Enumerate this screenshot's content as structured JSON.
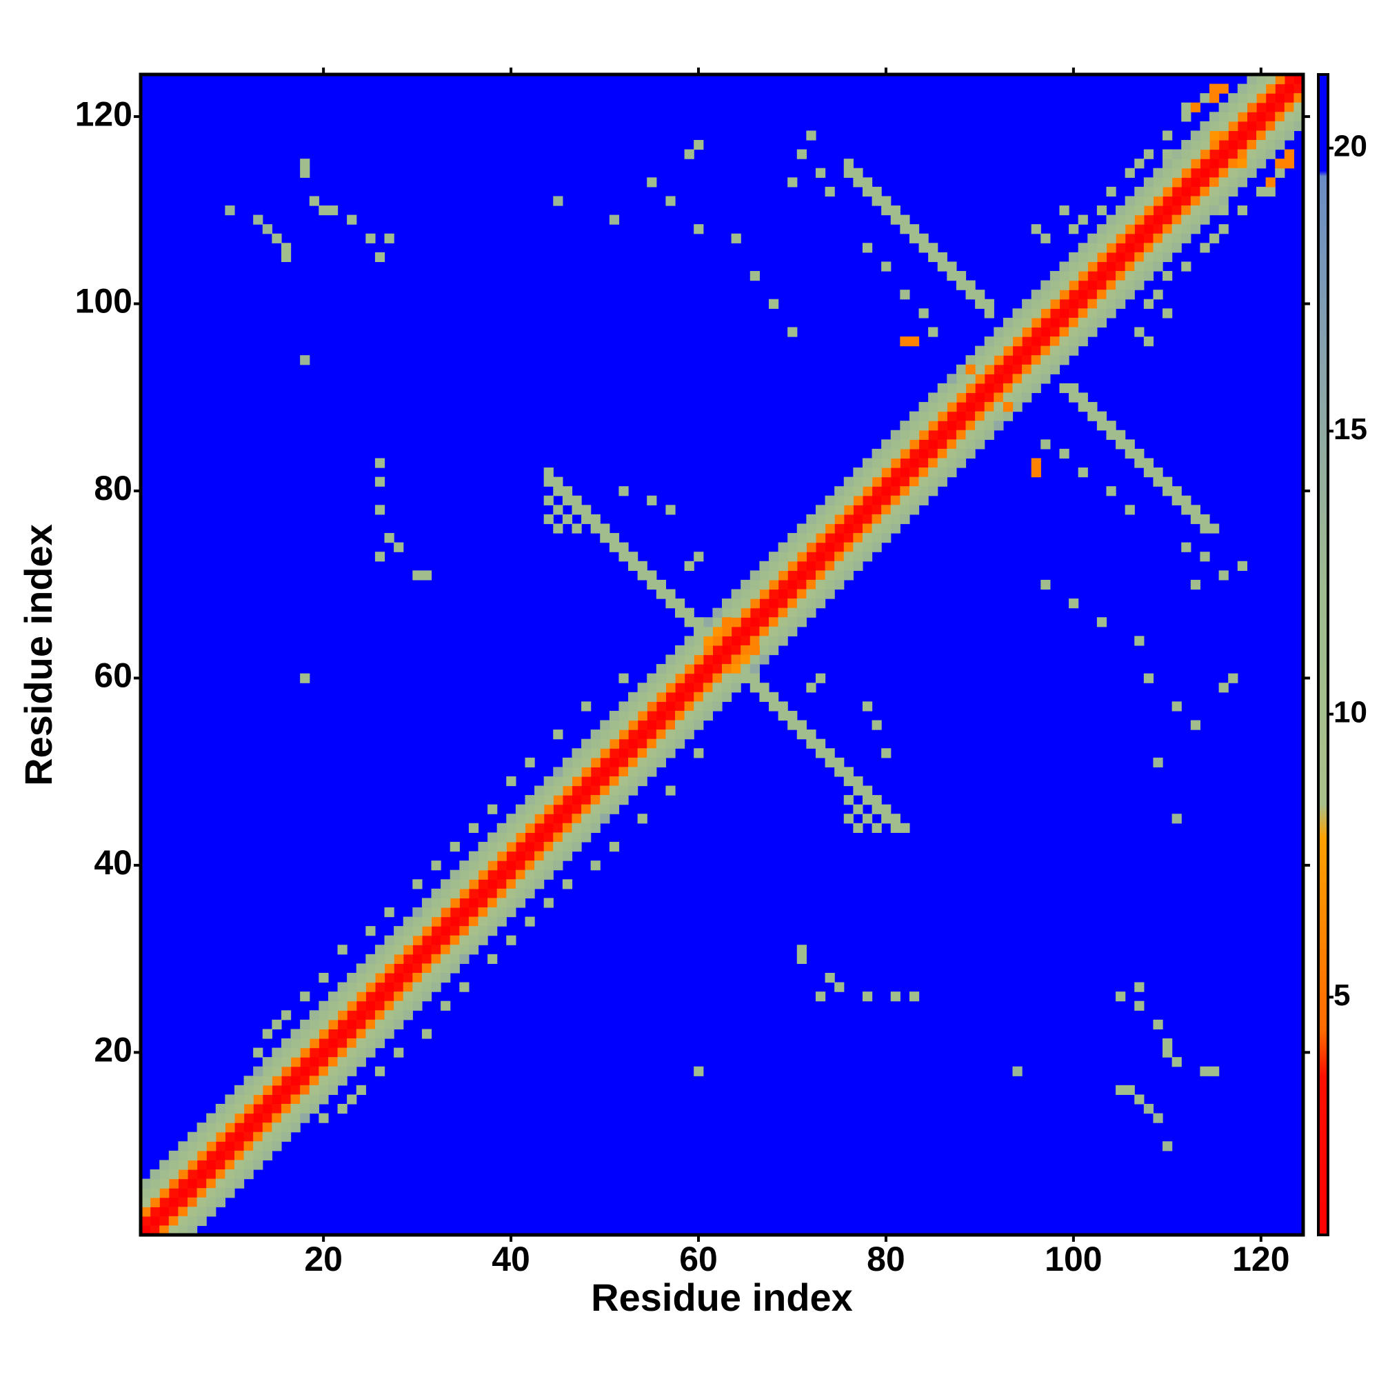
{
  "chart_data": {
    "type": "heatmap",
    "xlabel": "Residue index",
    "ylabel": "Residue index",
    "xlim": [
      0.5,
      124.5
    ],
    "ylim": [
      0.5,
      124.5
    ],
    "xticks": [
      20,
      40,
      60,
      80,
      100,
      120
    ],
    "yticks": [
      20,
      40,
      60,
      80,
      100,
      120
    ],
    "zlim": [
      0.8,
      21.3
    ],
    "zticks": [
      5,
      10,
      15,
      20
    ],
    "colorscale": [
      [
        0.8,
        "#ff0000"
      ],
      [
        3.6,
        "#ff1000"
      ],
      [
        4.4,
        "#ff6a00"
      ],
      [
        7.8,
        "#ffa000"
      ],
      [
        8.4,
        "#a8c08a"
      ],
      [
        12,
        "#a0bc8e"
      ],
      [
        16,
        "#8aa4aa"
      ],
      [
        19.5,
        "#6a8cc4"
      ],
      [
        19.6,
        "#0000ff"
      ],
      [
        21.3,
        "#0000ff"
      ]
    ],
    "symmetric": true,
    "diagonals": [
      [
        1,
        1,
        1,
        1,
        1,
        1,
        1,
        1,
        1,
        1,
        1,
        1,
        1,
        1,
        1,
        1,
        1,
        1,
        1,
        1,
        1,
        1,
        1,
        1,
        1,
        1,
        1,
        1,
        1,
        1,
        1,
        1,
        1,
        1,
        1,
        1,
        1,
        1,
        1,
        1,
        1,
        1,
        1,
        1,
        1,
        1,
        1,
        1,
        1,
        1,
        1,
        1,
        1,
        1,
        1,
        1,
        1,
        1,
        1,
        1,
        1,
        1,
        1,
        1,
        1,
        1,
        1,
        1,
        1,
        1,
        1,
        1,
        1,
        1,
        1,
        1,
        1,
        1,
        1,
        1,
        1,
        1,
        1,
        1,
        1,
        1,
        1,
        1,
        1,
        1,
        1,
        1,
        1,
        1,
        1,
        1,
        1,
        1,
        1,
        1,
        1,
        1,
        1,
        1,
        1,
        1,
        1,
        1,
        1,
        1,
        1,
        1,
        1,
        1,
        1,
        1,
        1,
        1,
        1,
        1,
        1,
        1,
        1,
        1
      ],
      [
        3.5,
        3.5,
        3.5,
        3.5,
        3.5,
        3.5,
        3.5,
        3.5,
        3.5,
        3.5,
        3.5,
        3.5,
        3.5,
        3.5,
        3.5,
        3.5,
        3.5,
        3.5,
        3.5,
        3.5,
        3.5,
        3.5,
        3.5,
        3.5,
        3.5,
        3.5,
        3.5,
        3.5,
        3.5,
        3.5,
        3.5,
        3.5,
        3.5,
        3.5,
        3.5,
        3.5,
        3.5,
        3.5,
        3.5,
        3.5,
        3.5,
        3.5,
        3.5,
        3.5,
        3.5,
        3.5,
        3.5,
        3.5,
        3.5,
        3.5,
        3.5,
        3.5,
        3.5,
        3.5,
        3.5,
        3.5,
        3.5,
        3.5,
        3.5,
        3.5,
        3.5,
        3.5,
        3.5,
        3.5,
        3.5,
        3.5,
        3.5,
        3.5,
        3.5,
        3.5,
        3.5,
        3.5,
        3.5,
        3.5,
        3.5,
        3.5,
        3.5,
        3.5,
        3.5,
        3.5,
        3.5,
        3.5,
        3.5,
        3.5,
        3.5,
        3.5,
        3.5,
        3.5,
        3.5,
        3.5,
        3.5,
        3.5,
        3.5,
        3.5,
        3.5,
        3.5,
        3.5,
        3.5,
        3.5,
        3.5,
        3.5,
        3.5,
        3.5,
        3.5,
        3.5,
        3.5,
        3.5,
        3.5,
        3.5,
        3.5,
        3.5,
        3.5,
        3.5,
        3.5,
        3.5,
        3.5,
        3.5,
        3.5,
        3.5,
        3.5,
        3.5,
        3.5,
        3.5
      ],
      [
        6,
        6,
        6,
        5,
        6,
        6,
        6,
        6,
        6,
        6,
        6,
        6,
        6,
        6,
        6,
        5,
        6,
        6,
        6,
        6,
        6,
        6,
        6,
        6,
        6,
        6,
        6,
        6,
        6,
        6,
        6,
        6,
        5,
        6,
        6,
        6,
        6,
        6,
        6,
        6,
        6,
        6,
        6,
        6,
        6,
        6,
        6,
        6,
        6,
        6,
        6,
        6,
        6,
        6,
        5,
        6,
        6,
        6,
        6,
        6,
        6,
        6,
        6,
        6,
        6,
        6,
        6,
        6,
        6,
        6,
        6,
        5,
        6,
        6,
        6,
        6,
        6,
        6,
        6,
        6,
        6,
        6,
        6,
        6,
        6,
        6,
        6,
        6,
        6,
        6,
        6,
        6,
        6,
        6,
        6,
        6,
        6,
        6,
        6,
        6,
        6,
        6,
        6,
        6,
        6,
        6,
        6,
        6,
        6,
        6,
        6,
        6,
        6,
        6,
        6,
        6,
        6,
        6,
        5,
        6,
        6,
        6
      ],
      [
        9,
        9,
        9,
        9,
        9,
        9,
        9,
        9,
        9,
        9,
        9,
        9,
        9,
        9,
        9,
        9,
        9,
        9,
        9,
        9,
        9,
        9,
        9,
        9,
        9,
        9,
        9,
        9,
        9,
        9,
        9,
        9,
        9,
        9,
        9,
        9,
        9,
        9,
        9,
        9,
        9,
        9,
        9,
        9,
        9,
        9,
        9,
        9,
        9,
        9,
        9,
        9,
        9,
        9,
        9,
        9,
        9,
        9,
        9,
        9,
        7,
        7,
        9,
        9,
        9,
        9,
        9,
        9,
        9,
        9,
        9,
        9,
        9,
        9,
        9,
        9,
        9,
        9,
        9,
        9,
        9,
        9,
        9,
        9,
        9,
        9,
        9,
        9,
        9,
        9,
        9,
        9,
        9,
        9,
        9,
        9,
        9,
        9,
        9,
        9,
        9,
        9,
        9,
        9,
        9,
        9,
        9,
        9,
        9,
        9,
        9,
        9,
        9,
        9,
        7,
        9,
        9,
        9,
        9,
        9,
        9
      ],
      [
        11,
        11,
        11,
        11,
        11,
        11,
        11,
        11,
        11,
        11,
        11,
        11,
        11,
        11,
        11,
        11,
        11,
        11,
        11,
        11,
        11,
        11,
        11,
        11,
        11,
        11,
        11,
        11,
        11,
        11,
        11,
        11,
        11,
        11,
        11,
        11,
        11,
        11,
        11,
        11,
        11,
        11,
        11,
        11,
        11,
        11,
        11,
        11,
        11,
        11,
        11,
        11,
        11,
        11,
        11,
        11,
        11,
        11,
        11,
        11,
        11,
        11,
        11,
        11,
        11,
        11,
        11,
        11,
        11,
        11,
        11,
        11,
        11,
        11,
        11,
        11,
        11,
        11,
        11,
        11,
        11,
        11,
        11,
        11,
        11,
        11,
        11,
        11,
        11,
        11,
        11,
        11,
        11,
        11,
        11,
        11,
        11,
        11,
        11,
        11,
        11,
        11,
        11,
        11,
        11,
        11,
        11,
        11,
        11,
        11,
        11,
        11,
        11,
        11,
        11,
        11,
        11,
        11,
        11,
        11
      ],
      [
        13,
        13,
        13,
        13,
        13,
        13,
        13,
        13,
        13,
        13,
        13,
        13,
        15,
        13,
        13,
        13,
        13,
        13,
        13,
        13,
        13,
        13,
        13,
        13,
        13,
        13,
        13,
        13,
        13,
        15,
        13,
        13,
        13,
        13,
        13,
        13,
        13,
        13,
        13,
        13,
        13,
        13,
        13,
        13,
        15,
        13,
        13,
        13,
        13,
        13,
        13,
        13,
        13,
        13,
        13,
        13,
        13,
        13,
        13,
        13,
        15,
        15,
        13,
        13,
        13,
        13,
        13,
        13,
        13,
        13,
        13,
        13,
        13,
        13,
        13,
        13,
        13,
        13,
        13,
        13,
        13,
        13,
        13,
        13,
        13,
        13,
        15,
        13,
        13,
        13,
        13,
        13,
        13,
        13,
        13,
        13,
        13,
        13,
        13,
        13,
        13,
        13,
        13,
        13,
        13,
        13,
        13,
        13,
        13,
        13,
        13,
        13,
        13,
        13,
        13,
        13,
        13,
        13,
        13
      ]
    ],
    "cells": [
      [
        44,
        82,
        11
      ],
      [
        44,
        81,
        11
      ],
      [
        45,
        81,
        11
      ],
      [
        45,
        80,
        11
      ],
      [
        46,
        80,
        11
      ],
      [
        46,
        79,
        11
      ],
      [
        47,
        79,
        11
      ],
      [
        47,
        78,
        11
      ],
      [
        48,
        78,
        11
      ],
      [
        48,
        77,
        11
      ],
      [
        49,
        77,
        11
      ],
      [
        49,
        76,
        11
      ],
      [
        50,
        76,
        11
      ],
      [
        50,
        75,
        11
      ],
      [
        51,
        75,
        11
      ],
      [
        51,
        74,
        11
      ],
      [
        52,
        74,
        11
      ],
      [
        52,
        73,
        11
      ],
      [
        53,
        73,
        11
      ],
      [
        53,
        72,
        11
      ],
      [
        54,
        72,
        11
      ],
      [
        54,
        71,
        11
      ],
      [
        55,
        71,
        11
      ],
      [
        55,
        70,
        11
      ],
      [
        56,
        70,
        11
      ],
      [
        56,
        69,
        11
      ],
      [
        57,
        69,
        11
      ],
      [
        57,
        68,
        11
      ],
      [
        58,
        68,
        11
      ],
      [
        58,
        67,
        11
      ],
      [
        59,
        67,
        11
      ],
      [
        59,
        66,
        11
      ],
      [
        60,
        66,
        11
      ],
      [
        60,
        65,
        11
      ],
      [
        44,
        79,
        11
      ],
      [
        45,
        78,
        11
      ],
      [
        46,
        77,
        11
      ],
      [
        47,
        76,
        11
      ],
      [
        44,
        77,
        11
      ],
      [
        45,
        76,
        11
      ],
      [
        52,
        80,
        11
      ],
      [
        55,
        79,
        11
      ],
      [
        57,
        78,
        11
      ],
      [
        60,
        73,
        11
      ],
      [
        59,
        72,
        11
      ],
      [
        63,
        66,
        6
      ],
      [
        76,
        115,
        11
      ],
      [
        76,
        114,
        11
      ],
      [
        77,
        114,
        11
      ],
      [
        77,
        113,
        11
      ],
      [
        78,
        113,
        11
      ],
      [
        78,
        112,
        11
      ],
      [
        79,
        112,
        11
      ],
      [
        79,
        111,
        11
      ],
      [
        80,
        111,
        11
      ],
      [
        80,
        110,
        11
      ],
      [
        81,
        110,
        11
      ],
      [
        81,
        109,
        11
      ],
      [
        82,
        109,
        11
      ],
      [
        82,
        108,
        11
      ],
      [
        83,
        108,
        11
      ],
      [
        83,
        107,
        11
      ],
      [
        84,
        107,
        11
      ],
      [
        84,
        106,
        11
      ],
      [
        85,
        106,
        11
      ],
      [
        85,
        105,
        11
      ],
      [
        86,
        105,
        11
      ],
      [
        86,
        104,
        11
      ],
      [
        87,
        104,
        11
      ],
      [
        87,
        103,
        11
      ],
      [
        88,
        103,
        11
      ],
      [
        88,
        102,
        11
      ],
      [
        89,
        102,
        11
      ],
      [
        89,
        101,
        11
      ],
      [
        90,
        101,
        11
      ],
      [
        90,
        100,
        11
      ],
      [
        91,
        100,
        11
      ],
      [
        91,
        99,
        11
      ],
      [
        82,
        96,
        6
      ],
      [
        83,
        96,
        6
      ],
      [
        89,
        93,
        6
      ],
      [
        71,
        116,
        11
      ],
      [
        72,
        118,
        11
      ],
      [
        73,
        114,
        11
      ],
      [
        74,
        112,
        11
      ],
      [
        70,
        113,
        11
      ],
      [
        80,
        104,
        11
      ],
      [
        82,
        101,
        11
      ],
      [
        84,
        99,
        11
      ],
      [
        78,
        106,
        11
      ],
      [
        85,
        97,
        11
      ],
      [
        108,
        116,
        11
      ],
      [
        110,
        118,
        11
      ],
      [
        112,
        121,
        11
      ],
      [
        114,
        122,
        11
      ],
      [
        115,
        123,
        6
      ],
      [
        112,
        120,
        11
      ],
      [
        113,
        121,
        6
      ],
      [
        116,
        123,
        6
      ],
      [
        115,
        122,
        6
      ],
      [
        110,
        116,
        11
      ],
      [
        106,
        114,
        11
      ],
      [
        107,
        115,
        11
      ],
      [
        104,
        112,
        11
      ],
      [
        103,
        110,
        11
      ],
      [
        101,
        109,
        11
      ],
      [
        100,
        108,
        11
      ],
      [
        97,
        107,
        11
      ],
      [
        96,
        108,
        11
      ],
      [
        99,
        110,
        11
      ],
      [
        13,
        20,
        11
      ],
      [
        14,
        22,
        11
      ],
      [
        15,
        23,
        11
      ],
      [
        16,
        24,
        11
      ],
      [
        18,
        26,
        11
      ],
      [
        20,
        28,
        11
      ],
      [
        22,
        31,
        11
      ],
      [
        25,
        33,
        11
      ],
      [
        27,
        35,
        11
      ],
      [
        30,
        38,
        11
      ],
      [
        32,
        40,
        11
      ],
      [
        34,
        42,
        11
      ],
      [
        36,
        44,
        11
      ],
      [
        38,
        46,
        11
      ],
      [
        40,
        49,
        11
      ],
      [
        42,
        51,
        11
      ],
      [
        45,
        54,
        11
      ],
      [
        48,
        57,
        11
      ],
      [
        52,
        60,
        11
      ],
      [
        18,
        115,
        11
      ],
      [
        18,
        114,
        11
      ],
      [
        19,
        111,
        11
      ],
      [
        20,
        110,
        11
      ],
      [
        21,
        110,
        11
      ],
      [
        23,
        109,
        11
      ],
      [
        10,
        110,
        13
      ],
      [
        13,
        109,
        13
      ],
      [
        14,
        108,
        13
      ],
      [
        15,
        107,
        11
      ],
      [
        16,
        106,
        11
      ],
      [
        16,
        105,
        11
      ],
      [
        25,
        107,
        11
      ],
      [
        27,
        107,
        11
      ],
      [
        26,
        105,
        11
      ],
      [
        18,
        94,
        13
      ],
      [
        18,
        60,
        11
      ],
      [
        26,
        83,
        11
      ],
      [
        26,
        81,
        11
      ],
      [
        26,
        78,
        11
      ],
      [
        27,
        75,
        11
      ],
      [
        28,
        74,
        11
      ],
      [
        26,
        73,
        11
      ],
      [
        30,
        71,
        11
      ],
      [
        31,
        71,
        11
      ],
      [
        45,
        111,
        13
      ],
      [
        51,
        109,
        13
      ],
      [
        55,
        113,
        11
      ],
      [
        59,
        116,
        11
      ],
      [
        60,
        117,
        11
      ],
      [
        57,
        111,
        11
      ],
      [
        60,
        108,
        11
      ],
      [
        64,
        107,
        11
      ],
      [
        66,
        103,
        11
      ],
      [
        68,
        100,
        11
      ],
      [
        70,
        97,
        11
      ]
    ]
  }
}
